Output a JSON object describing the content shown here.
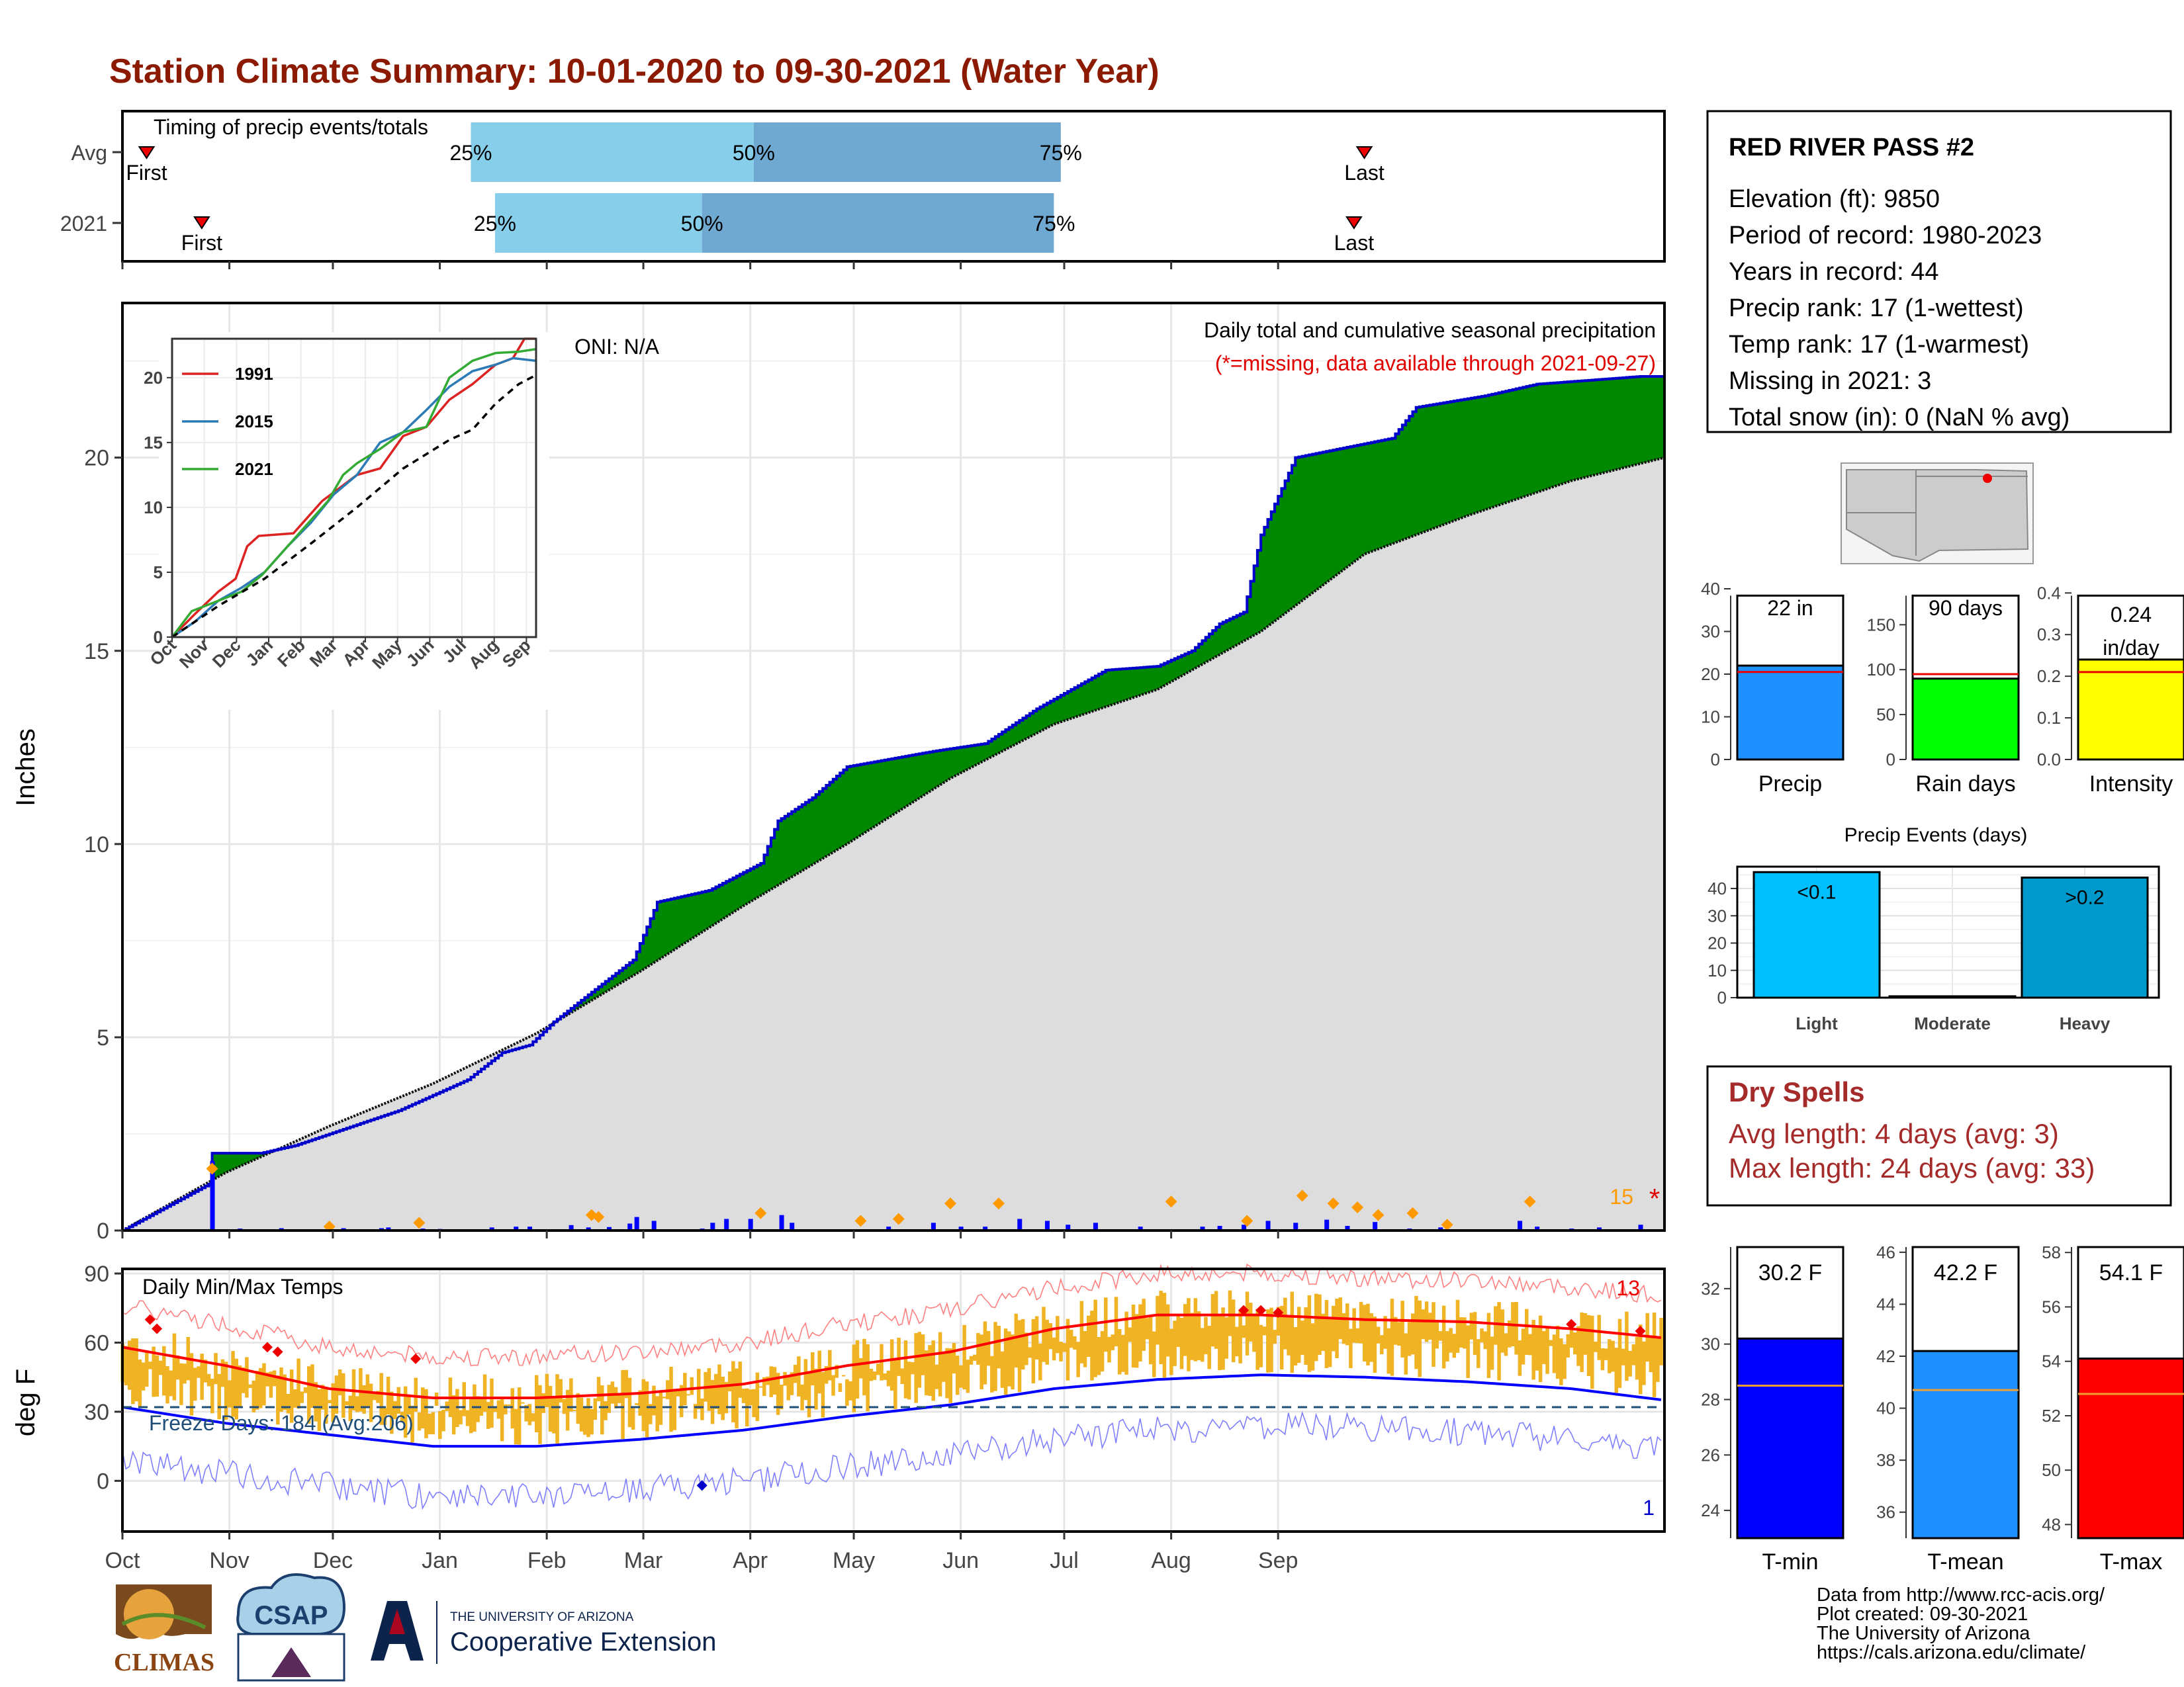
{
  "title": "Station Climate Summary: 10-01-2020 to 09-30-2021 (Water Year)",
  "months": [
    "Oct",
    "Nov",
    "Dec",
    "Jan",
    "Feb",
    "Mar",
    "Apr",
    "May",
    "Jun",
    "Jul",
    "Aug",
    "Sep"
  ],
  "timing": {
    "label": "Timing of precip events/totals",
    "rows": [
      {
        "name": "Avg",
        "first_label": "First",
        "last_label": "Last",
        "first_day": 7,
        "last_day": 360,
        "p25_day": 101,
        "p50_day": 183,
        "p75_day": 272
      },
      {
        "name": "2021",
        "first_label": "First",
        "last_label": "Last",
        "first_day": 23,
        "last_day": 357,
        "p25_day": 108,
        "p50_day": 168,
        "p75_day": 270
      }
    ],
    "p_labels": [
      "25%",
      "50%",
      "75%"
    ]
  },
  "station": {
    "name": "RED RIVER PASS #2",
    "lines": [
      "Elevation (ft): 9850",
      "Period of record: 1980-2023",
      "Years in record: 44",
      "Precip rank: 17 (1-wettest)",
      "Temp rank: 17 (1-warmest)",
      "Missing in 2021: 3",
      "Total snow (in): 0 (NaN % avg)"
    ]
  },
  "precip_panel": {
    "ylabel": "Inches",
    "oni": "ONI: N/A",
    "subtitle": "Daily total and cumulative seasonal precipitation",
    "missing_note": "(*=missing, data available through 2021-09-27)",
    "count_label": "15",
    "missing_marker": "*",
    "ylim": [
      0,
      24
    ],
    "yticks": [
      0,
      5,
      10,
      15,
      20
    ],
    "cumulative_2021": [
      [
        0,
        0
      ],
      [
        25,
        1.2
      ],
      [
        26,
        2.0
      ],
      [
        40,
        2.0
      ],
      [
        50,
        2.2
      ],
      [
        60,
        2.5
      ],
      [
        70,
        2.8
      ],
      [
        80,
        3.1
      ],
      [
        90,
        3.5
      ],
      [
        100,
        3.9
      ],
      [
        110,
        4.6
      ],
      [
        118,
        4.8
      ],
      [
        125,
        5.4
      ],
      [
        135,
        6.1
      ],
      [
        148,
        7.0
      ],
      [
        155,
        8.5
      ],
      [
        170,
        8.8
      ],
      [
        185,
        9.5
      ],
      [
        190,
        10.6
      ],
      [
        200,
        11.2
      ],
      [
        210,
        12.0
      ],
      [
        235,
        12.4
      ],
      [
        250,
        12.6
      ],
      [
        265,
        13.5
      ],
      [
        285,
        14.5
      ],
      [
        300,
        14.6
      ],
      [
        310,
        15.0
      ],
      [
        318,
        15.7
      ],
      [
        325,
        16.0
      ],
      [
        330,
        18.0
      ],
      [
        340,
        20.0
      ],
      [
        368,
        20.5
      ],
      [
        375,
        21.3
      ],
      [
        395,
        21.6
      ],
      [
        410,
        21.9
      ],
      [
        425,
        22.0
      ],
      [
        440,
        22.1
      ],
      [
        447,
        22.1
      ]
    ],
    "average_cumulative": [
      [
        0,
        0
      ],
      [
        30,
        1.5
      ],
      [
        60,
        2.7
      ],
      [
        90,
        3.8
      ],
      [
        120,
        5.1
      ],
      [
        150,
        6.7
      ],
      [
        180,
        8.4
      ],
      [
        210,
        10.0
      ],
      [
        240,
        11.7
      ],
      [
        270,
        13.1
      ],
      [
        300,
        14.0
      ],
      [
        330,
        15.5
      ],
      [
        360,
        17.5
      ],
      [
        390,
        18.5
      ],
      [
        420,
        19.4
      ],
      [
        447,
        20.0
      ]
    ],
    "daily_bars": [
      [
        26,
        1.8
      ],
      [
        34,
        0.05
      ],
      [
        46,
        0.06
      ],
      [
        60,
        0.1
      ],
      [
        64,
        0.06
      ],
      [
        75,
        0.06
      ],
      [
        77,
        0.08
      ],
      [
        87,
        0.05
      ],
      [
        92,
        0.04
      ],
      [
        107,
        0.08
      ],
      [
        114,
        0.1
      ],
      [
        118,
        0.1
      ],
      [
        130,
        0.14
      ],
      [
        135,
        0.08
      ],
      [
        141,
        0.09
      ],
      [
        147,
        0.18
      ],
      [
        149,
        0.35
      ],
      [
        154,
        0.25
      ],
      [
        168,
        0.05
      ],
      [
        171,
        0.2
      ],
      [
        175,
        0.3
      ],
      [
        182,
        0.3
      ],
      [
        191,
        0.4
      ],
      [
        194,
        0.2
      ],
      [
        222,
        0.1
      ],
      [
        235,
        0.2
      ],
      [
        243,
        0.1
      ],
      [
        250,
        0.1
      ],
      [
        260,
        0.3
      ],
      [
        268,
        0.25
      ],
      [
        274,
        0.15
      ],
      [
        282,
        0.2
      ],
      [
        295,
        0.1
      ],
      [
        313,
        0.1
      ],
      [
        318,
        0.12
      ],
      [
        325,
        0.15
      ],
      [
        332,
        0.25
      ],
      [
        340,
        0.2
      ],
      [
        349,
        0.28
      ],
      [
        355,
        0.12
      ],
      [
        363,
        0.22
      ],
      [
        373,
        0.05
      ],
      [
        382,
        0.08
      ],
      [
        405,
        0.25
      ],
      [
        410,
        0.1
      ],
      [
        420,
        0.05
      ],
      [
        428,
        0.08
      ],
      [
        440,
        0.15
      ]
    ],
    "orange_markers": [
      [
        26,
        1.6
      ],
      [
        60,
        0.1
      ],
      [
        86,
        0.2
      ],
      [
        136,
        0.4
      ],
      [
        138,
        0.35
      ],
      [
        185,
        0.45
      ],
      [
        214,
        0.25
      ],
      [
        225,
        0.3
      ],
      [
        240,
        0.7
      ],
      [
        254,
        0.7
      ],
      [
        304,
        0.75
      ],
      [
        326,
        0.25
      ],
      [
        342,
        0.9
      ],
      [
        351,
        0.7
      ],
      [
        358,
        0.6
      ],
      [
        364,
        0.4
      ],
      [
        374,
        0.45
      ],
      [
        384,
        0.15
      ],
      [
        408,
        0.75
      ]
    ],
    "inset": {
      "ylim": [
        0,
        23
      ],
      "yticks": [
        0,
        5,
        10,
        15,
        20
      ],
      "series": [
        {
          "name": "1991",
          "color": "#dd2222",
          "points": [
            [
              0,
              0
            ],
            [
              20,
              1.8
            ],
            [
              40,
              3.5
            ],
            [
              55,
              4.5
            ],
            [
              65,
              7.0
            ],
            [
              75,
              7.8
            ],
            [
              105,
              8.0
            ],
            [
              130,
              10.5
            ],
            [
              160,
              12.5
            ],
            [
              180,
              13.0
            ],
            [
              200,
              15.5
            ],
            [
              220,
              16.2
            ],
            [
              240,
              18.3
            ],
            [
              260,
              19.5
            ],
            [
              280,
              21.0
            ],
            [
              295,
              21.5
            ],
            [
              305,
              23.0
            ],
            [
              315,
              23.0
            ]
          ]
        },
        {
          "name": "2015",
          "color": "#2c7bb6",
          "points": [
            [
              0,
              0
            ],
            [
              20,
              1.2
            ],
            [
              40,
              2.8
            ],
            [
              60,
              3.8
            ],
            [
              80,
              5.0
            ],
            [
              100,
              7.0
            ],
            [
              120,
              8.8
            ],
            [
              140,
              11.0
            ],
            [
              160,
              12.5
            ],
            [
              180,
              15.0
            ],
            [
              200,
              15.8
            ],
            [
              220,
              17.5
            ],
            [
              240,
              19.3
            ],
            [
              260,
              20.5
            ],
            [
              280,
              21.0
            ],
            [
              295,
              21.5
            ],
            [
              315,
              21.3
            ]
          ]
        },
        {
          "name": "2021",
          "color": "#33aa33",
          "points": [
            [
              0,
              0
            ],
            [
              17,
              2.0
            ],
            [
              40,
              2.8
            ],
            [
              60,
              3.5
            ],
            [
              78,
              4.8
            ],
            [
              100,
              7.0
            ],
            [
              118,
              8.8
            ],
            [
              135,
              10.5
            ],
            [
              148,
              12.5
            ],
            [
              160,
              13.4
            ],
            [
              180,
              14.5
            ],
            [
              200,
              15.8
            ],
            [
              220,
              16.2
            ],
            [
              240,
              20.0
            ],
            [
              260,
              21.3
            ],
            [
              280,
              21.9
            ],
            [
              300,
              22.0
            ],
            [
              315,
              22.2
            ]
          ]
        }
      ],
      "average_points": [
        [
          0,
          0
        ],
        [
          40,
          2.4
        ],
        [
          80,
          4.5
        ],
        [
          120,
          7.2
        ],
        [
          160,
          10.0
        ],
        [
          200,
          13.0
        ],
        [
          240,
          15.2
        ],
        [
          260,
          16.0
        ],
        [
          280,
          18.0
        ],
        [
          300,
          19.5
        ],
        [
          315,
          20.2
        ]
      ]
    }
  },
  "summary_bars": [
    {
      "label": "Precip",
      "value": 22,
      "value_label": "22 in",
      "color": "#1e90ff",
      "avg": 20.5,
      "ylim": [
        0,
        40
      ],
      "yticks": [
        0,
        10,
        20,
        30,
        40
      ]
    },
    {
      "label": "Rain days",
      "value": 90,
      "value_label": "90 days",
      "color": "#00ff00",
      "avg": 95,
      "ylim": [
        0,
        190
      ],
      "yticks": [
        0,
        50,
        100,
        150
      ]
    },
    {
      "label": "Intensity",
      "value": 0.24,
      "value_label": "0.24 in/day",
      "color": "#ffff00",
      "avg": 0.21,
      "ylim": [
        0,
        0.41
      ],
      "yticks": [
        0.0,
        0.1,
        0.2,
        0.3,
        0.4
      ]
    }
  ],
  "events": {
    "title": "Precip Events (days)",
    "categories": [
      "Light",
      "Moderate",
      "Heavy"
    ],
    "values": [
      46,
      0.5,
      44
    ],
    "bar_labels": [
      "<0.1",
      "",
      ">0.2"
    ],
    "colors": [
      "#00bfff",
      "#00bfff",
      "#0099cc"
    ],
    "ylim": [
      0,
      48
    ],
    "yticks": [
      0,
      10,
      20,
      30,
      40
    ]
  },
  "dry_spells": {
    "title": "Dry Spells",
    "lines": [
      "Avg length: 4 days (avg: 3)",
      "Max length: 24 days (avg: 33)"
    ]
  },
  "temp_panel": {
    "ylabel": "deg F",
    "label": "Daily Min/Max Temps",
    "freeze_label": "Freeze Days: 184 (Avg:206)",
    "max_count": "13",
    "min_count": "1",
    "ylim": [
      -22,
      92
    ],
    "yticks": [
      0,
      30,
      60,
      90
    ],
    "freeze_line": 32,
    "avg_max": [
      [
        0,
        58
      ],
      [
        30,
        50
      ],
      [
        60,
        40
      ],
      [
        90,
        36
      ],
      [
        120,
        36
      ],
      [
        150,
        38
      ],
      [
        180,
        42
      ],
      [
        210,
        50
      ],
      [
        240,
        56
      ],
      [
        270,
        66
      ],
      [
        300,
        72
      ],
      [
        330,
        72
      ],
      [
        360,
        70
      ],
      [
        390,
        69
      ],
      [
        420,
        66
      ],
      [
        447,
        62
      ]
    ],
    "avg_min": [
      [
        0,
        32
      ],
      [
        30,
        25
      ],
      [
        60,
        20
      ],
      [
        90,
        15
      ],
      [
        120,
        15
      ],
      [
        150,
        18
      ],
      [
        180,
        22
      ],
      [
        210,
        28
      ],
      [
        240,
        33
      ],
      [
        270,
        40
      ],
      [
        300,
        44
      ],
      [
        330,
        46
      ],
      [
        360,
        45
      ],
      [
        390,
        43
      ],
      [
        420,
        40
      ],
      [
        447,
        35
      ]
    ]
  },
  "temp_bars": [
    {
      "label": "T-min",
      "value": 30.2,
      "value_label": "30.2 F",
      "color": "#0000ff",
      "avg": 28.5,
      "ylim": [
        23,
        33.5
      ],
      "yticks": [
        24,
        26,
        28,
        30,
        32
      ]
    },
    {
      "label": "T-mean",
      "value": 42.2,
      "value_label": "42.2 F",
      "color": "#1e90ff",
      "avg": 40.7,
      "ylim": [
        35,
        46.2
      ],
      "yticks": [
        36,
        38,
        40,
        42,
        44,
        46
      ]
    },
    {
      "label": "T-max",
      "value": 54.1,
      "value_label": "54.1 F",
      "color": "#ff0000",
      "avg": 52.8,
      "ylim": [
        47.5,
        58.2
      ],
      "yticks": [
        48,
        50,
        52,
        54,
        56,
        58
      ]
    }
  ],
  "footer": {
    "lines": [
      "Data from http://www.rcc-acis.org/",
      "Plot created: 09-30-2021",
      "The University of Arizona",
      "https://cals.arizona.edu/climate/"
    ],
    "logos": {
      "climas": "CLIMAS",
      "csap": "CSAP",
      "ua_top": "THE UNIVERSITY OF ARIZONA",
      "ua_main": "Cooperative Extension"
    }
  }
}
